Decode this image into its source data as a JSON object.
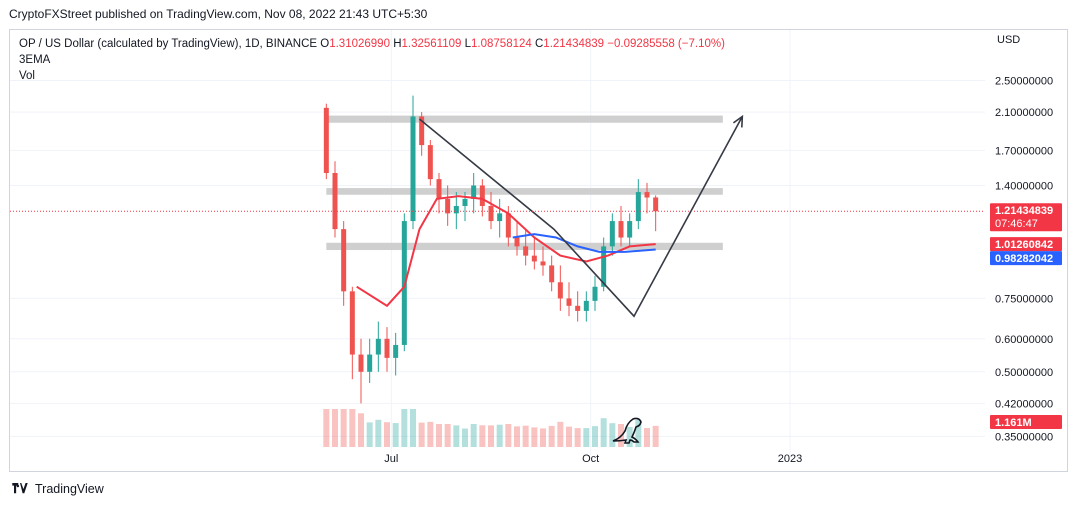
{
  "header": {
    "publisher": "CryptoFXStreet published on TradingView.com, Nov 08, 2022 21:43 UTC+5:30"
  },
  "legend": {
    "symbol": "OP / US Dollar (calculated by TradingView), 1D, BINANCE",
    "open_label": "O",
    "open": "1.31026990",
    "high_label": "H",
    "high": "1.32561109",
    "low_label": "L",
    "low": "1.08758124",
    "close_label": "C",
    "close": "1.21434839",
    "change": "−0.09285558 (−7.10%)",
    "indicator_ema": "3EMA",
    "indicator_vol": "Vol"
  },
  "footer": {
    "brand": "TradingView"
  },
  "colors": {
    "up": "#26a69a",
    "down": "#ef5350",
    "ema_red": "#f23645",
    "ema_blue": "#2962ff",
    "zone": "#c7c7c7",
    "arrow": "#363a45",
    "price_label": "#f23645",
    "blue_label": "#2962ff"
  },
  "chart_data": {
    "type": "candlestick",
    "currency": "USD",
    "y_scale": "log",
    "ylim": [
      0.33,
      2.65
    ],
    "y_ticks": [
      "2.50000000",
      "2.10000000",
      "1.70000000",
      "1.40000000",
      "0.75000000",
      "0.60000000",
      "0.50000000",
      "0.42000000",
      "0.35000000"
    ],
    "y_tick_values": [
      2.5,
      2.1,
      1.7,
      1.4,
      0.75,
      0.6,
      0.5,
      0.42,
      0.35
    ],
    "x_ticks": [
      "Jul",
      "Oct",
      "2023"
    ],
    "x_tick_dates": [
      "2022-07-01",
      "2022-10-01",
      "2023-01-01"
    ],
    "x_range": [
      "2022-01-06",
      "2023-04-01"
    ],
    "price_labels": {
      "last_price": "1.21434839",
      "countdown": "07:46:47",
      "ema_red_value": "1.01260842",
      "ema_blue_value": "0.98282042",
      "volume_value": "1.161M"
    },
    "last_price_value": 1.21434839,
    "ema_red_last": 1.01260842,
    "ema_blue_last": 0.98282042,
    "zones": [
      {
        "from": "2022-06-01",
        "to": "2022-12-01",
        "low": 1.98,
        "high": 2.06
      },
      {
        "from": "2022-06-01",
        "to": "2022-12-01",
        "low": 1.33,
        "high": 1.38
      },
      {
        "from": "2022-06-01",
        "to": "2022-12-01",
        "low": 0.98,
        "high": 1.02
      }
    ],
    "projection": [
      {
        "date": "2022-07-14",
        "price": 2.02
      },
      {
        "date": "2022-09-14",
        "price": 1.1
      },
      {
        "date": "2022-10-21",
        "price": 0.68
      },
      {
        "date": "2022-12-10",
        "price": 2.05
      }
    ],
    "candles": [
      {
        "date": "2022-06-01",
        "open": 2.15,
        "high": 2.2,
        "low": 1.45,
        "close": 1.5
      },
      {
        "date": "2022-06-05",
        "open": 1.5,
        "high": 1.6,
        "low": 1.05,
        "close": 1.1
      },
      {
        "date": "2022-06-09",
        "open": 1.1,
        "high": 1.15,
        "low": 0.72,
        "close": 0.78
      },
      {
        "date": "2022-06-13",
        "open": 0.78,
        "high": 0.8,
        "low": 0.48,
        "close": 0.55
      },
      {
        "date": "2022-06-17",
        "open": 0.55,
        "high": 0.6,
        "low": 0.42,
        "close": 0.5
      },
      {
        "date": "2022-06-21",
        "open": 0.5,
        "high": 0.6,
        "low": 0.47,
        "close": 0.55
      },
      {
        "date": "2022-06-25",
        "open": 0.55,
        "high": 0.66,
        "low": 0.5,
        "close": 0.6
      },
      {
        "date": "2022-06-29",
        "open": 0.6,
        "high": 0.64,
        "low": 0.5,
        "close": 0.54
      },
      {
        "date": "2022-07-03",
        "open": 0.54,
        "high": 0.62,
        "low": 0.49,
        "close": 0.58
      },
      {
        "date": "2022-07-07",
        "open": 0.58,
        "high": 1.2,
        "low": 0.56,
        "close": 1.15
      },
      {
        "date": "2022-07-11",
        "open": 1.15,
        "high": 2.3,
        "low": 1.1,
        "close": 2.05
      },
      {
        "date": "2022-07-15",
        "open": 2.05,
        "high": 2.1,
        "low": 1.65,
        "close": 1.75
      },
      {
        "date": "2022-07-19",
        "open": 1.75,
        "high": 1.8,
        "low": 1.4,
        "close": 1.45
      },
      {
        "date": "2022-07-23",
        "open": 1.45,
        "high": 1.5,
        "low": 1.2,
        "close": 1.3
      },
      {
        "date": "2022-07-27",
        "open": 1.3,
        "high": 1.4,
        "low": 1.12,
        "close": 1.2
      },
      {
        "date": "2022-07-31",
        "open": 1.2,
        "high": 1.35,
        "low": 1.1,
        "close": 1.25
      },
      {
        "date": "2022-08-04",
        "open": 1.25,
        "high": 1.35,
        "low": 1.15,
        "close": 1.3
      },
      {
        "date": "2022-08-08",
        "open": 1.3,
        "high": 1.5,
        "low": 1.2,
        "close": 1.4
      },
      {
        "date": "2022-08-12",
        "open": 1.4,
        "high": 1.45,
        "low": 1.18,
        "close": 1.25
      },
      {
        "date": "2022-08-16",
        "open": 1.25,
        "high": 1.35,
        "low": 1.1,
        "close": 1.15
      },
      {
        "date": "2022-08-20",
        "open": 1.15,
        "high": 1.3,
        "low": 1.05,
        "close": 1.2
      },
      {
        "date": "2022-08-24",
        "open": 1.2,
        "high": 1.25,
        "low": 1.0,
        "close": 1.05
      },
      {
        "date": "2022-08-28",
        "open": 1.05,
        "high": 1.15,
        "low": 0.95,
        "close": 1.0
      },
      {
        "date": "2022-09-01",
        "open": 1.0,
        "high": 1.1,
        "low": 0.9,
        "close": 0.95
      },
      {
        "date": "2022-09-05",
        "open": 0.95,
        "high": 1.05,
        "low": 0.88,
        "close": 0.92
      },
      {
        "date": "2022-09-09",
        "open": 0.92,
        "high": 1.0,
        "low": 0.85,
        "close": 0.9
      },
      {
        "date": "2022-09-13",
        "open": 0.9,
        "high": 0.95,
        "low": 0.78,
        "close": 0.82
      },
      {
        "date": "2022-09-17",
        "open": 0.82,
        "high": 0.9,
        "low": 0.7,
        "close": 0.75
      },
      {
        "date": "2022-09-21",
        "open": 0.75,
        "high": 0.82,
        "low": 0.68,
        "close": 0.72
      },
      {
        "date": "2022-09-25",
        "open": 0.72,
        "high": 0.78,
        "low": 0.66,
        "close": 0.7
      },
      {
        "date": "2022-09-29",
        "open": 0.7,
        "high": 0.78,
        "low": 0.66,
        "close": 0.74
      },
      {
        "date": "2022-10-03",
        "open": 0.74,
        "high": 0.85,
        "low": 0.7,
        "close": 0.8
      },
      {
        "date": "2022-10-07",
        "open": 0.8,
        "high": 1.05,
        "low": 0.78,
        "close": 1.0
      },
      {
        "date": "2022-10-11",
        "open": 1.0,
        "high": 1.2,
        "low": 0.95,
        "close": 1.15
      },
      {
        "date": "2022-10-15",
        "open": 1.15,
        "high": 1.25,
        "low": 1.0,
        "close": 1.05
      },
      {
        "date": "2022-10-19",
        "open": 1.05,
        "high": 1.2,
        "low": 1.0,
        "close": 1.15
      },
      {
        "date": "2022-10-23",
        "open": 1.15,
        "high": 1.45,
        "low": 1.1,
        "close": 1.35
      },
      {
        "date": "2022-10-27",
        "open": 1.35,
        "high": 1.42,
        "low": 1.2,
        "close": 1.31
      },
      {
        "date": "2022-10-31",
        "open": 1.3102699,
        "high": 1.32561109,
        "low": 1.08758124,
        "close": 1.21434839
      }
    ],
    "ema_red": [
      {
        "date": "2022-06-15",
        "value": 0.8
      },
      {
        "date": "2022-06-29",
        "value": 0.72
      },
      {
        "date": "2022-07-07",
        "value": 0.8
      },
      {
        "date": "2022-07-14",
        "value": 1.1
      },
      {
        "date": "2022-07-22",
        "value": 1.3
      },
      {
        "date": "2022-08-01",
        "value": 1.32
      },
      {
        "date": "2022-08-12",
        "value": 1.3
      },
      {
        "date": "2022-08-24",
        "value": 1.2
      },
      {
        "date": "2022-09-05",
        "value": 1.05
      },
      {
        "date": "2022-09-17",
        "value": 0.95
      },
      {
        "date": "2022-09-29",
        "value": 0.92
      },
      {
        "date": "2022-10-09",
        "value": 0.95
      },
      {
        "date": "2022-10-19",
        "value": 1.0
      },
      {
        "date": "2022-10-31",
        "value": 1.0126
      }
    ],
    "ema_blue": [
      {
        "date": "2022-08-26",
        "value": 1.05
      },
      {
        "date": "2022-09-05",
        "value": 1.07
      },
      {
        "date": "2022-09-15",
        "value": 1.05
      },
      {
        "date": "2022-09-25",
        "value": 1.0
      },
      {
        "date": "2022-10-05",
        "value": 0.97
      },
      {
        "date": "2022-10-17",
        "value": 0.97
      },
      {
        "date": "2022-10-31",
        "value": 0.9828
      }
    ]
  }
}
